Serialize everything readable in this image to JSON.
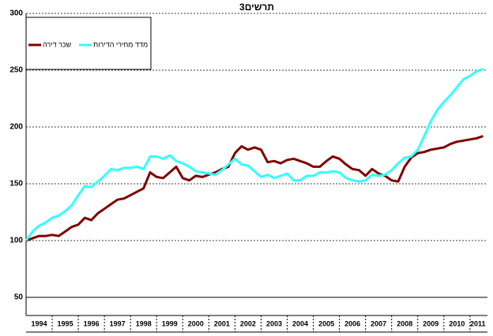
{
  "chart_data": {
    "type": "line",
    "title": "תרשים3",
    "x": [
      1994,
      1994.25,
      1994.5,
      1994.75,
      1995,
      1995.25,
      1995.5,
      1995.75,
      1996,
      1996.25,
      1996.5,
      1996.75,
      1997,
      1997.25,
      1997.5,
      1997.75,
      1998,
      1998.25,
      1998.5,
      1998.75,
      1999,
      1999.25,
      1999.5,
      1999.75,
      2000,
      2000.25,
      2000.5,
      2000.75,
      2001,
      2001.25,
      2001.5,
      2001.75,
      2002,
      2002.25,
      2002.5,
      2002.75,
      2003,
      2003.25,
      2003.5,
      2003.75,
      2004,
      2004.25,
      2004.5,
      2004.75,
      2005,
      2005.25,
      2005.5,
      2005.75,
      2006,
      2006.25,
      2006.5,
      2006.75,
      2007,
      2007.25,
      2007.5,
      2007.75,
      2008,
      2008.25,
      2008.5,
      2008.75,
      2009,
      2009.25,
      2009.5,
      2009.75,
      2010,
      2010.25,
      2010.5,
      2010.75,
      2011,
      2011.25,
      2011.5
    ],
    "series": [
      {
        "name": "שכר דירה",
        "color": "#800000",
        "values": [
          100,
          102,
          104,
          104,
          105,
          104,
          108,
          112,
          114,
          120,
          118,
          124,
          128,
          132,
          136,
          137,
          140,
          143,
          146,
          160,
          156,
          155,
          160,
          165,
          155,
          153,
          157,
          156,
          158,
          160,
          163,
          165,
          177,
          183,
          180,
          182,
          180,
          169,
          170,
          168,
          171,
          172,
          170,
          168,
          165,
          165,
          170,
          174,
          172,
          167,
          163,
          162,
          157,
          163,
          159,
          157,
          153,
          152,
          165,
          173,
          177,
          178,
          180,
          181,
          182,
          185,
          187,
          188,
          189,
          190,
          192
        ]
      },
      {
        "name": "מדד מחירי הדירות",
        "color": "#33ffff",
        "values": [
          100,
          108,
          113,
          116,
          120,
          122,
          126,
          131,
          140,
          148,
          147,
          152,
          157,
          163,
          162,
          164,
          164,
          165,
          163,
          174,
          174,
          172,
          175,
          170,
          168,
          165,
          161,
          160,
          159,
          158,
          162,
          167,
          172,
          167,
          166,
          161,
          156,
          158,
          155,
          157,
          159,
          153,
          153,
          157,
          157,
          160,
          160,
          161,
          160,
          155,
          153,
          152,
          153,
          158,
          157,
          158,
          162,
          168,
          173,
          174,
          180,
          192,
          205,
          215,
          222,
          228,
          235,
          242,
          245,
          249,
          251
        ]
      }
    ],
    "xlim": [
      1994,
      2011.67
    ],
    "xticks": [
      {
        "value": 1994.5,
        "label": "1994"
      },
      {
        "value": 1995.5,
        "label": "1995"
      },
      {
        "value": 1996.5,
        "label": "1996"
      },
      {
        "value": 1997.5,
        "label": "1997"
      },
      {
        "value": 1998.5,
        "label": "1998"
      },
      {
        "value": 1999.5,
        "label": "1999"
      },
      {
        "value": 2000.5,
        "label": "2000"
      },
      {
        "value": 2001.5,
        "label": "2001"
      },
      {
        "value": 2002.5,
        "label": "2002"
      },
      {
        "value": 2003.5,
        "label": "2003"
      },
      {
        "value": 2004.5,
        "label": "2004"
      },
      {
        "value": 2005.5,
        "label": "2005"
      },
      {
        "value": 2006.5,
        "label": "2006"
      },
      {
        "value": 2007.5,
        "label": "2007"
      },
      {
        "value": 2008.5,
        "label": "2008"
      },
      {
        "value": 2009.5,
        "label": "2009"
      },
      {
        "value": 2010.5,
        "label": "2010"
      },
      {
        "value": 2011.3,
        "label": "2011"
      }
    ],
    "ylim": [
      50,
      300
    ],
    "yticks": [
      50,
      100,
      150,
      200,
      250,
      300
    ],
    "grid": true
  }
}
